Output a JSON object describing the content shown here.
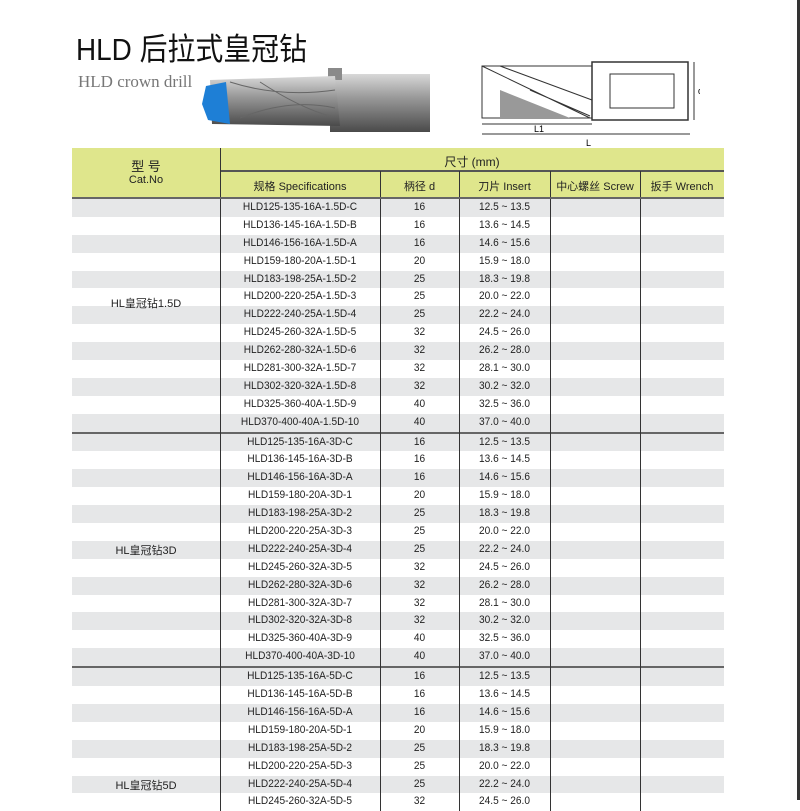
{
  "title": "HLD 后拉式皇冠钻",
  "subtitle": "HLD crown drill",
  "diagram_labels": {
    "d": "d",
    "l1": "L1",
    "l": "L"
  },
  "table": {
    "header": {
      "cat_cn": "型 号",
      "cat_en": "Cat.No",
      "dims": "尺寸 (mm)",
      "spec": "规格  Specifications",
      "d": "柄径 d",
      "insert": "刀片 Insert",
      "screw": "中心螺丝 Screw",
      "wrench": "扳手 Wrench"
    },
    "groups": [
      {
        "label": "HL皇冠钻1.5D",
        "rows": [
          [
            "HLD125-135-16A-1.5D-C",
            "16",
            "12.5 ~ 13.5"
          ],
          [
            "HLD136-145-16A-1.5D-B",
            "16",
            "13.6 ~ 14.5"
          ],
          [
            "HLD146-156-16A-1.5D-A",
            "16",
            "14.6 ~ 15.6"
          ],
          [
            "HLD159-180-20A-1.5D-1",
            "20",
            "15.9 ~ 18.0"
          ],
          [
            "HLD183-198-25A-1.5D-2",
            "25",
            "18.3 ~ 19.8"
          ],
          [
            "HLD200-220-25A-1.5D-3",
            "25",
            "20.0 ~ 22.0"
          ],
          [
            "HLD222-240-25A-1.5D-4",
            "25",
            "22.2 ~ 24.0"
          ],
          [
            "HLD245-260-32A-1.5D-5",
            "32",
            "24.5 ~ 26.0"
          ],
          [
            "HLD262-280-32A-1.5D-6",
            "32",
            "26.2 ~ 28.0"
          ],
          [
            "HLD281-300-32A-1.5D-7",
            "32",
            "28.1 ~ 30.0"
          ],
          [
            "HLD302-320-32A-1.5D-8",
            "32",
            "30.2 ~ 32.0"
          ],
          [
            "HLD325-360-40A-1.5D-9",
            "40",
            "32.5 ~ 36.0"
          ],
          [
            "HLD370-400-40A-1.5D-10",
            "40",
            "37.0 ~ 40.0"
          ]
        ]
      },
      {
        "label": "HL皇冠钻3D",
        "rows": [
          [
            "HLD125-135-16A-3D-C",
            "16",
            "12.5 ~ 13.5"
          ],
          [
            "HLD136-145-16A-3D-B",
            "16",
            "13.6 ~ 14.5"
          ],
          [
            "HLD146-156-16A-3D-A",
            "16",
            "14.6 ~ 15.6"
          ],
          [
            "HLD159-180-20A-3D-1",
            "20",
            "15.9 ~ 18.0"
          ],
          [
            "HLD183-198-25A-3D-2",
            "25",
            "18.3 ~ 19.8"
          ],
          [
            "HLD200-220-25A-3D-3",
            "25",
            "20.0 ~ 22.0"
          ],
          [
            "HLD222-240-25A-3D-4",
            "25",
            "22.2 ~ 24.0"
          ],
          [
            "HLD245-260-32A-3D-5",
            "32",
            "24.5 ~ 26.0"
          ],
          [
            "HLD262-280-32A-3D-6",
            "32",
            "26.2 ~ 28.0"
          ],
          [
            "HLD281-300-32A-3D-7",
            "32",
            "28.1 ~ 30.0"
          ],
          [
            "HLD302-320-32A-3D-8",
            "32",
            "30.2 ~ 32.0"
          ],
          [
            "HLD325-360-40A-3D-9",
            "40",
            "32.5 ~ 36.0"
          ],
          [
            "HLD370-400-40A-3D-10",
            "40",
            "37.0 ~ 40.0"
          ]
        ]
      },
      {
        "label": "HL皇冠钻5D",
        "rows": [
          [
            "HLD125-135-16A-5D-C",
            "16",
            "12.5 ~ 13.5"
          ],
          [
            "HLD136-145-16A-5D-B",
            "16",
            "13.6 ~ 14.5"
          ],
          [
            "HLD146-156-16A-5D-A",
            "16",
            "14.6 ~ 15.6"
          ],
          [
            "HLD159-180-20A-5D-1",
            "20",
            "15.9 ~ 18.0"
          ],
          [
            "HLD183-198-25A-5D-2",
            "25",
            "18.3 ~ 19.8"
          ],
          [
            "HLD200-220-25A-5D-3",
            "25",
            "20.0 ~ 22.0"
          ],
          [
            "HLD222-240-25A-5D-4",
            "25",
            "22.2 ~ 24.0"
          ],
          [
            "HLD245-260-32A-5D-5",
            "32",
            "24.5 ~ 26.0"
          ]
        ]
      }
    ]
  },
  "colors": {
    "header_bg": "#dfe68c",
    "stripe": "#e6e7e8",
    "insert_blue": "#1e7fd6"
  }
}
